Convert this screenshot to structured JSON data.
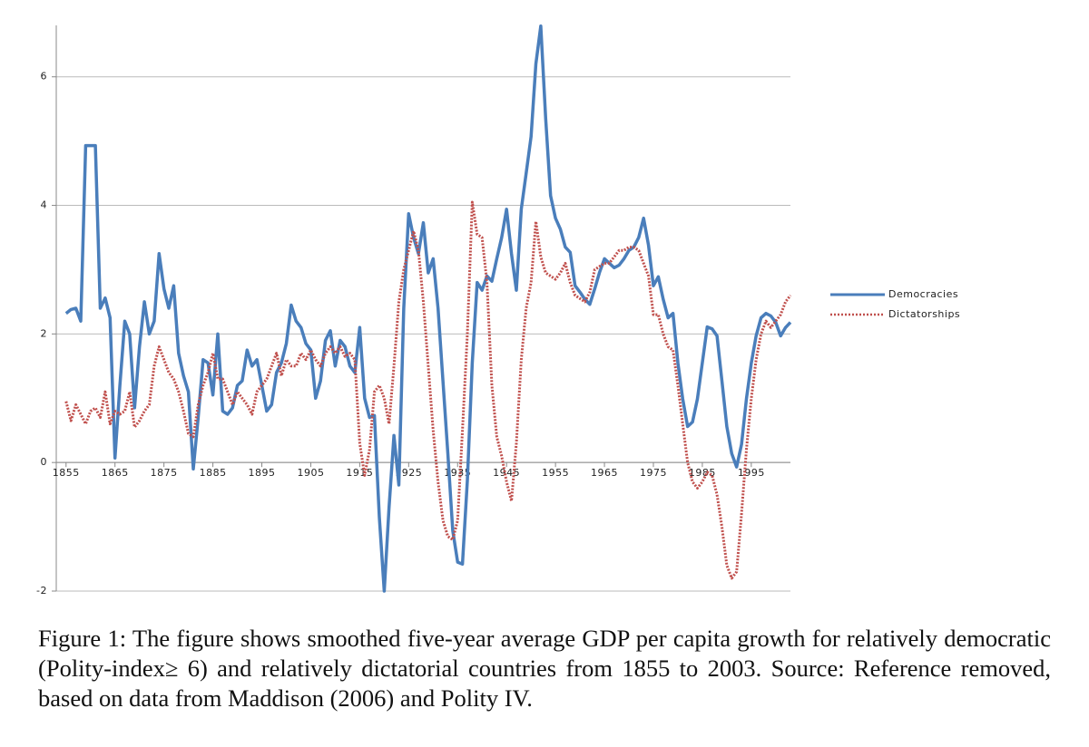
{
  "chart_data": {
    "type": "line",
    "x": [
      1855,
      1856,
      1857,
      1858,
      1859,
      1860,
      1861,
      1862,
      1863,
      1864,
      1865,
      1866,
      1867,
      1868,
      1869,
      1870,
      1871,
      1872,
      1873,
      1874,
      1875,
      1876,
      1877,
      1878,
      1879,
      1880,
      1881,
      1882,
      1883,
      1884,
      1885,
      1886,
      1887,
      1888,
      1889,
      1890,
      1891,
      1892,
      1893,
      1894,
      1895,
      1896,
      1897,
      1898,
      1899,
      1900,
      1901,
      1902,
      1903,
      1904,
      1905,
      1906,
      1907,
      1908,
      1909,
      1910,
      1911,
      1912,
      1913,
      1914,
      1915,
      1916,
      1917,
      1918,
      1919,
      1920,
      1921,
      1922,
      1923,
      1924,
      1925,
      1926,
      1927,
      1928,
      1929,
      1930,
      1931,
      1932,
      1933,
      1934,
      1935,
      1936,
      1937,
      1938,
      1939,
      1940,
      1941,
      1942,
      1943,
      1944,
      1945,
      1946,
      1947,
      1948,
      1949,
      1950,
      1951,
      1952,
      1953,
      1954,
      1955,
      1956,
      1957,
      1958,
      1959,
      1960,
      1961,
      1962,
      1963,
      1964,
      1965,
      1966,
      1967,
      1968,
      1969,
      1970,
      1971,
      1972,
      1973,
      1974,
      1975,
      1976,
      1977,
      1978,
      1979,
      1980,
      1981,
      1982,
      1983,
      1984,
      1985,
      1986,
      1987,
      1988,
      1989,
      1990,
      1991,
      1992,
      1993,
      1994,
      1995,
      1996,
      1997,
      1998,
      1999,
      2000,
      2001,
      2002,
      2003
    ],
    "series": [
      {
        "name": "Democracies",
        "color": "#4a7ebb",
        "style": "solid",
        "values": [
          2.32,
          2.38,
          2.4,
          2.2,
          4.93,
          4.93,
          4.93,
          2.4,
          2.56,
          2.25,
          0.07,
          1.2,
          2.2,
          2.0,
          0.85,
          1.8,
          2.5,
          2.0,
          2.2,
          3.25,
          2.7,
          2.4,
          2.75,
          1.7,
          1.35,
          1.1,
          -0.1,
          0.7,
          1.6,
          1.55,
          1.05,
          2.0,
          0.8,
          0.75,
          0.85,
          1.2,
          1.27,
          1.75,
          1.5,
          1.6,
          1.2,
          0.8,
          0.9,
          1.4,
          1.55,
          1.85,
          2.45,
          2.2,
          2.1,
          1.85,
          1.75,
          1.0,
          1.27,
          1.9,
          2.05,
          1.5,
          1.9,
          1.8,
          1.5,
          1.4,
          2.1,
          1.0,
          0.7,
          0.73,
          -0.85,
          -2.0,
          -0.7,
          0.42,
          -0.35,
          2.4,
          3.87,
          3.5,
          3.25,
          3.73,
          2.95,
          3.17,
          2.4,
          1.27,
          0.14,
          -1.06,
          -1.55,
          -1.58,
          -0.28,
          1.55,
          2.8,
          2.68,
          2.9,
          2.82,
          3.17,
          3.5,
          3.94,
          3.25,
          2.68,
          3.94,
          4.5,
          5.07,
          6.2,
          6.79,
          5.35,
          4.15,
          3.8,
          3.63,
          3.35,
          3.27,
          2.75,
          2.65,
          2.54,
          2.46,
          2.7,
          2.96,
          3.17,
          3.1,
          3.03,
          3.07,
          3.17,
          3.3,
          3.35,
          3.5,
          3.8,
          3.38,
          2.75,
          2.89,
          2.54,
          2.25,
          2.32,
          1.55,
          0.99,
          0.56,
          0.63,
          0.99,
          1.55,
          2.11,
          2.08,
          1.97,
          1.27,
          0.56,
          0.14,
          -0.07,
          0.28,
          0.99,
          1.55,
          1.97,
          2.25,
          2.32,
          2.28,
          2.18,
          1.97,
          2.1,
          2.18
        ]
      },
      {
        "name": "Dictatorships",
        "color": "#c0504d",
        "style": "dotted",
        "values": [
          0.95,
          0.65,
          0.9,
          0.75,
          0.6,
          0.8,
          0.85,
          0.7,
          1.1,
          0.6,
          0.8,
          0.75,
          0.8,
          1.1,
          0.55,
          0.65,
          0.8,
          0.9,
          1.5,
          1.8,
          1.6,
          1.4,
          1.3,
          1.1,
          0.8,
          0.45,
          0.4,
          0.9,
          1.2,
          1.4,
          1.7,
          1.3,
          1.3,
          1.1,
          0.9,
          1.1,
          1.0,
          0.9,
          0.75,
          1.1,
          1.2,
          1.3,
          1.5,
          1.7,
          1.35,
          1.6,
          1.5,
          1.5,
          1.7,
          1.6,
          1.75,
          1.6,
          1.5,
          1.7,
          1.8,
          1.7,
          1.8,
          1.65,
          1.7,
          1.6,
          0.3,
          -0.2,
          0.2,
          1.1,
          1.2,
          1.0,
          0.6,
          1.5,
          2.5,
          3.0,
          3.3,
          3.6,
          3.3,
          2.5,
          1.5,
          0.5,
          -0.3,
          -0.9,
          -1.15,
          -1.2,
          -0.9,
          0.5,
          2.0,
          4.05,
          3.55,
          3.5,
          2.8,
          1.2,
          0.4,
          0.1,
          -0.3,
          -0.6,
          0.3,
          1.6,
          2.4,
          2.8,
          3.75,
          3.2,
          2.95,
          2.9,
          2.85,
          2.95,
          3.1,
          2.8,
          2.6,
          2.55,
          2.5,
          2.65,
          3.0,
          3.05,
          3.1,
          3.1,
          3.2,
          3.3,
          3.3,
          3.35,
          3.35,
          3.3,
          3.1,
          2.9,
          2.3,
          2.3,
          2.0,
          1.8,
          1.75,
          1.2,
          0.6,
          0.0,
          -0.3,
          -0.4,
          -0.3,
          -0.15,
          -0.2,
          -0.5,
          -1.0,
          -1.6,
          -1.8,
          -1.7,
          -0.8,
          0.2,
          1.0,
          1.6,
          2.0,
          2.2,
          2.1,
          2.2,
          2.3,
          2.5,
          2.6
        ]
      }
    ],
    "xlim": [
      1853,
      2003
    ],
    "xticks": [
      1855,
      1865,
      1875,
      1885,
      1895,
      1905,
      1915,
      1925,
      1935,
      1945,
      1955,
      1965,
      1975,
      1985,
      1995
    ],
    "ylim": [
      -2,
      6.8
    ],
    "yticks": [
      -2,
      0,
      2,
      4,
      6
    ],
    "grid": true,
    "legend": "right"
  },
  "caption": "Figure 1: The figure shows smoothed five-year average GDP per capita growth for relatively democratic (Polity-index≥ 6) and relatively dictatorial countries from 1855 to 2003. Source: Reference removed, based on data from Maddison (2006) and Polity IV."
}
